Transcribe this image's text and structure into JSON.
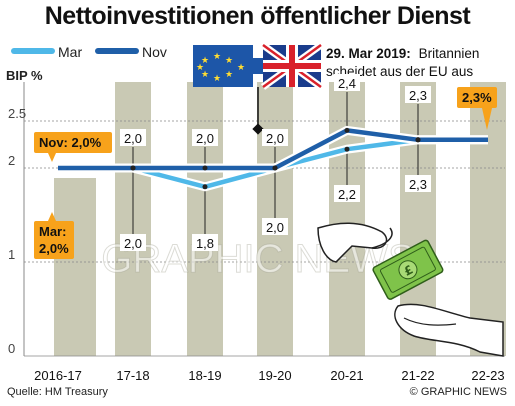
{
  "title": "Nettoinvestitionen öffentlicher Dienst",
  "legend": [
    {
      "name": "Mar",
      "color": "#4fb8e8"
    },
    {
      "name": "Nov",
      "color": "#1f5fa8"
    }
  ],
  "ylabel": "BIP %",
  "event": {
    "date": "29. Mar 2019:",
    "text_line1": "Britannien",
    "text_line2": "scheidet aus der EU aus"
  },
  "callouts": {
    "nov_start": "Nov: 2,0%",
    "mar_start_line1": "Mar:",
    "mar_start_line2": "2,0%",
    "end": "2,3%"
  },
  "watermark": "GRAPHIC NEWS",
  "source": "Quelle: HM Treasury",
  "credit": "© GRAPHIC NEWS",
  "colors": {
    "band": "#c9c9b4",
    "accent": "#f7a21b",
    "mar": "#4fb8e8",
    "nov": "#1f5fa8",
    "money": "#7fc34a"
  },
  "icons": [
    "eu-flag-icon",
    "union-jack-icon",
    "hands-money-icon"
  ],
  "chart_data": {
    "type": "line",
    "title": "Nettoinvestitionen öffentlicher Dienst",
    "ylabel": "BIP %",
    "xlabel": "",
    "categories": [
      "2016-17",
      "17-18",
      "18-19",
      "19-20",
      "20-21",
      "21-22",
      "22-23"
    ],
    "ylim": [
      0,
      2.5
    ],
    "yticks": [
      "0",
      "1",
      "2",
      "2.5"
    ],
    "series": [
      {
        "name": "Mar",
        "values": [
          2.0,
          2.0,
          1.8,
          2.0,
          2.2,
          2.3,
          2.3
        ],
        "labels": [
          "Mar: 2,0%",
          "2,0",
          "1,8",
          "2,0",
          "2,2",
          "2,3",
          "2,3%"
        ]
      },
      {
        "name": "Nov",
        "values": [
          2.0,
          2.0,
          2.0,
          2.0,
          2.4,
          2.3,
          2.3
        ],
        "labels": [
          "Nov: 2,0%",
          "2,0",
          "2,0",
          "2,0",
          "2,4",
          "2,3",
          "2,3%"
        ]
      }
    ],
    "grid": true,
    "legend_position": "top-left"
  }
}
